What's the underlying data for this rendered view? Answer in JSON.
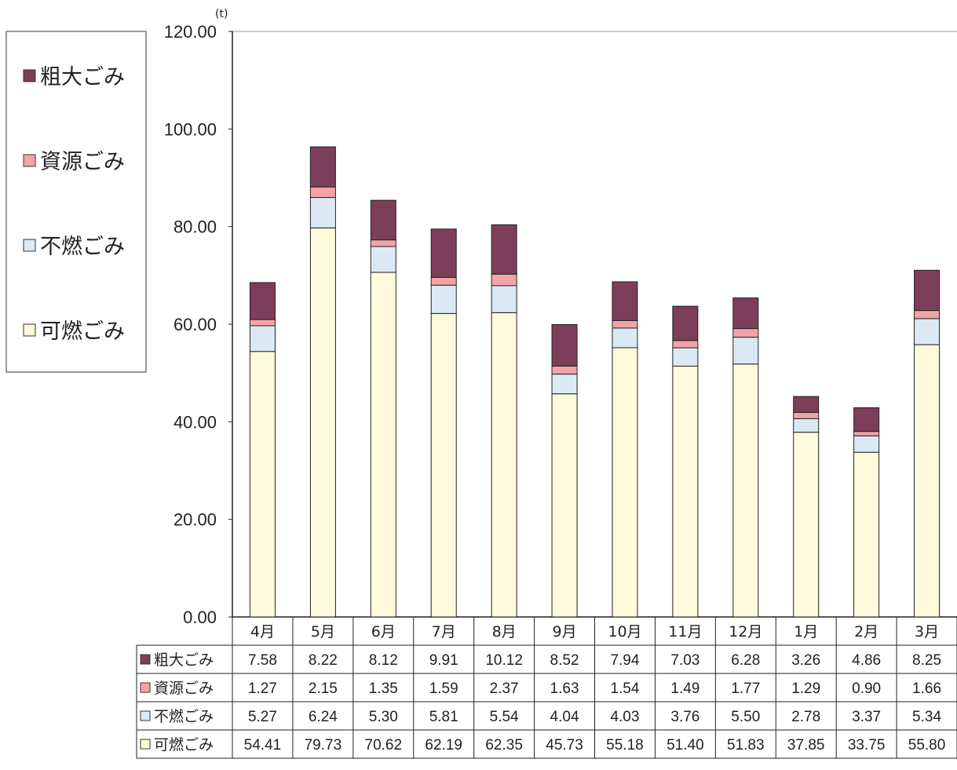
{
  "chart_data": {
    "type": "bar",
    "stacked": true,
    "unit": "(t)",
    "categories": [
      "4月",
      "5月",
      "6月",
      "7月",
      "8月",
      "9月",
      "10月",
      "11月",
      "12月",
      "1月",
      "2月",
      "3月"
    ],
    "series": [
      {
        "name": "可燃ごみ",
        "color": "#fdfbdc",
        "values": [
          54.41,
          79.73,
          70.62,
          62.19,
          62.35,
          45.73,
          55.18,
          51.4,
          51.83,
          37.85,
          33.75,
          55.8
        ]
      },
      {
        "name": "不燃ごみ",
        "color": "#dbe9f4",
        "values": [
          5.27,
          6.24,
          5.3,
          5.81,
          5.54,
          4.04,
          4.03,
          3.76,
          5.5,
          2.78,
          3.37,
          5.34
        ]
      },
      {
        "name": "資源ごみ",
        "color": "#f3a3a8",
        "values": [
          1.27,
          2.15,
          1.35,
          1.59,
          2.37,
          1.63,
          1.54,
          1.49,
          1.77,
          1.29,
          0.9,
          1.66
        ]
      },
      {
        "name": "粗大ごみ",
        "color": "#7d3e5a",
        "values": [
          7.58,
          8.22,
          8.12,
          9.91,
          10.12,
          8.52,
          7.94,
          7.03,
          6.28,
          3.26,
          4.86,
          8.25
        ]
      }
    ],
    "y_ticks": [
      "0.00",
      "20.00",
      "40.00",
      "60.00",
      "80.00",
      "100.00",
      "120.00"
    ],
    "ylim": [
      0,
      120
    ],
    "grid": false,
    "legend_position": "top-left",
    "legend_order": [
      "粗大ごみ",
      "資源ごみ",
      "不燃ごみ",
      "可燃ごみ"
    ],
    "data_table": {
      "row_order": [
        "粗大ごみ",
        "資源ごみ",
        "不燃ごみ",
        "可燃ごみ"
      ],
      "rows": {
        "粗大ごみ": [
          "7.58",
          "8.22",
          "8.12",
          "9.91",
          "10.12",
          "8.52",
          "7.94",
          "7.03",
          "6.28",
          "3.26",
          "4.86",
          "8.25"
        ],
        "資源ごみ": [
          "1.27",
          "2.15",
          "1.35",
          "1.59",
          "2.37",
          "1.63",
          "1.54",
          "1.49",
          "1.77",
          "1.29",
          "0.90",
          "1.66"
        ],
        "不燃ごみ": [
          "5.27",
          "6.24",
          "5.30",
          "5.81",
          "5.54",
          "4.04",
          "4.03",
          "3.76",
          "5.50",
          "2.78",
          "3.37",
          "5.34"
        ],
        "可燃ごみ": [
          "54.41",
          "79.73",
          "70.62",
          "62.19",
          "62.35",
          "45.73",
          "55.18",
          "51.40",
          "51.83",
          "37.85",
          "33.75",
          "55.80"
        ]
      }
    }
  }
}
